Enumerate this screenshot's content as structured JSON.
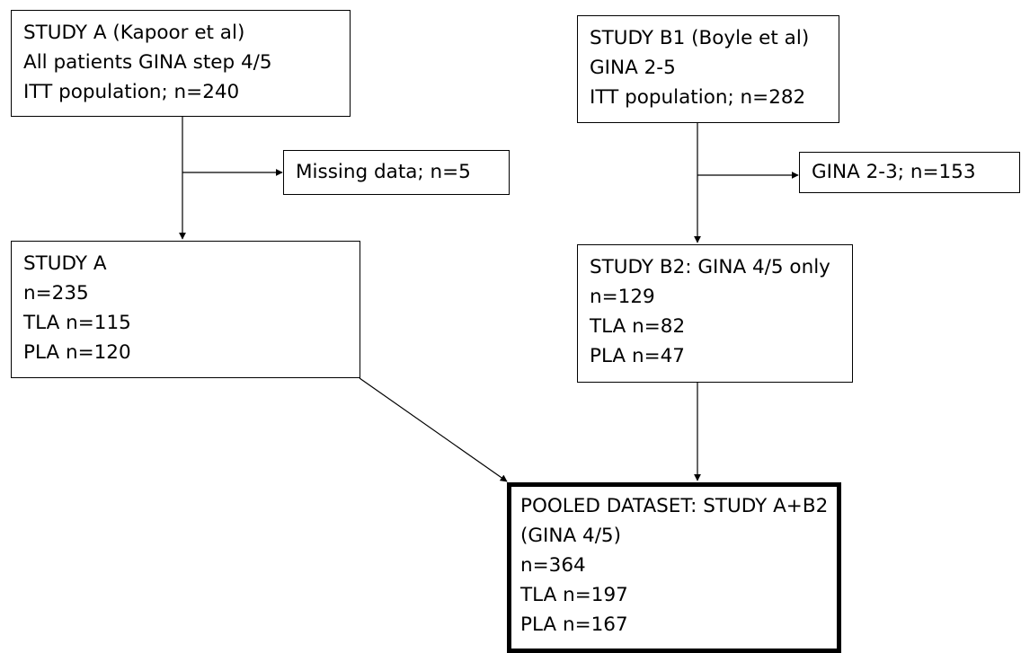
{
  "diagram": {
    "study_a_itt": {
      "lines": [
        "STUDY A (Kapoor et al)",
        "All patients GINA step 4/5",
        "ITT population; n=240"
      ]
    },
    "study_a_missing": {
      "lines": [
        "Missing data; n=5"
      ]
    },
    "study_a": {
      "lines": [
        "STUDY A",
        "n=235",
        "TLA n=115",
        "PLA n=120"
      ]
    },
    "study_b1_itt": {
      "lines": [
        "STUDY B1 (Boyle et al)",
        "GINA 2-5",
        "ITT population; n=282"
      ]
    },
    "study_b1_excluded": {
      "lines": [
        "GINA 2-3; n=153"
      ]
    },
    "study_b2": {
      "lines": [
        "STUDY B2: GINA 4/5 only",
        "n=129",
        "TLA n=82",
        "PLA n=47"
      ]
    },
    "pooled": {
      "lines": [
        "POOLED DATASET: STUDY A+B2",
        "(GINA 4/5)",
        "n=364",
        "TLA n=197",
        "PLA n=167"
      ]
    }
  }
}
